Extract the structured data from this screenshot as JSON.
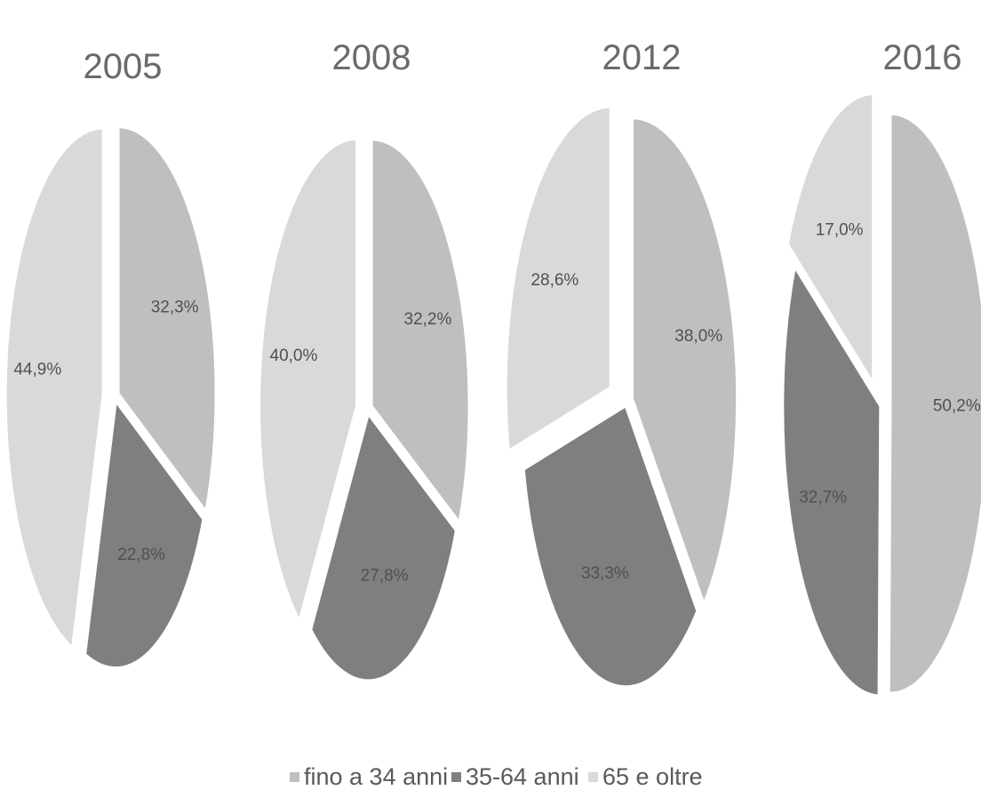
{
  "chart_data": [
    {
      "type": "pie",
      "title": "2005",
      "categories": [
        "fino a 34 anni",
        "35-64 anni",
        "65 e oltre"
      ],
      "values": [
        32.3,
        22.8,
        44.9
      ],
      "labels": [
        "32,3%",
        "22,8%",
        "44,9%"
      ]
    },
    {
      "type": "pie",
      "title": "2008",
      "categories": [
        "fino a 34 anni",
        "35-64 anni",
        "65 e oltre"
      ],
      "values": [
        32.2,
        27.8,
        40.0
      ],
      "labels": [
        "32,2%",
        "27,8%",
        "40,0%"
      ]
    },
    {
      "type": "pie",
      "title": "2012",
      "categories": [
        "fino a 34 anni",
        "35-64 anni",
        "65 e oltre"
      ],
      "values": [
        38.0,
        33.3,
        28.6
      ],
      "labels": [
        "38,0%",
        "33,3%",
        "28,6%"
      ]
    },
    {
      "type": "pie",
      "title": "2016",
      "categories": [
        "fino a 34 anni",
        "35-64 anni",
        "65 e oltre"
      ],
      "values": [
        50.2,
        32.7,
        17.0
      ],
      "labels": [
        "50,2%",
        "32,7%",
        "17,0%"
      ]
    }
  ],
  "legend": {
    "placement": "bottom",
    "items": [
      {
        "label": "fino a 34 anni",
        "color": "#bfbfbf"
      },
      {
        "label": "35-64 anni",
        "color": "#7f7f7f"
      },
      {
        "label": "65 e oltre",
        "color": "#d9d9d9"
      }
    ]
  },
  "colors": [
    "#bfbfbf",
    "#7f7f7f",
    "#d9d9d9"
  ]
}
